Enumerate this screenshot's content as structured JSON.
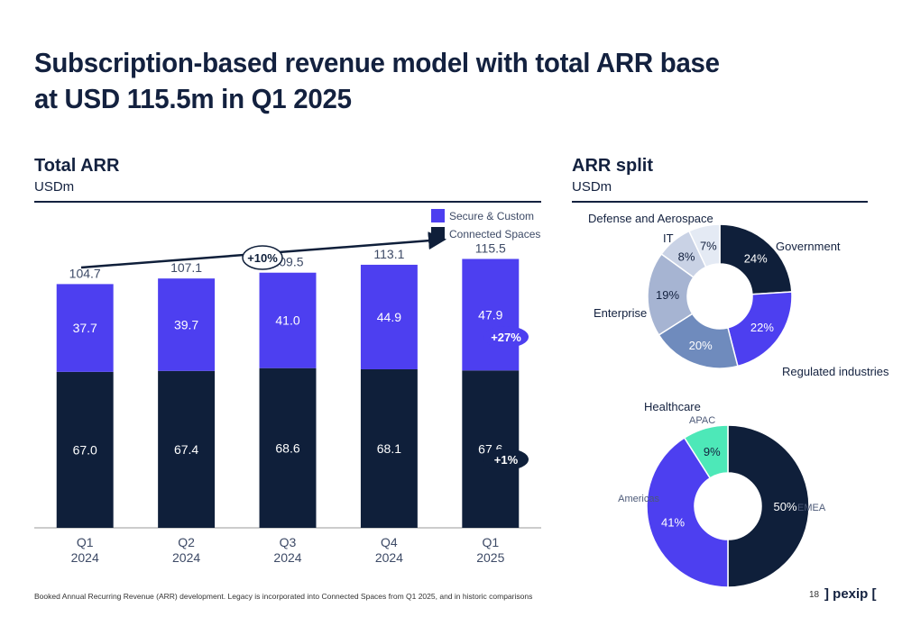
{
  "page": {
    "title_line1": "Subscription-based revenue model with total ARR base",
    "title_line2": "at USD 115.5m in Q1 2025",
    "footnote": "Booked Annual Recurring Revenue (ARR) development. Legacy is incorporated into Connected Spaces from Q1 2025, and in historic comparisons",
    "page_number": "18",
    "logo": "] pexip ["
  },
  "left": {
    "title": "Total ARR",
    "unit": "USDm"
  },
  "right": {
    "title": "ARR split",
    "unit": "USDm"
  },
  "colors": {
    "navy": "#0f1f3a",
    "purple": "#4d3ff0",
    "steel": "#6f8bbd",
    "lightsteel": "#a6b4d2",
    "pale": "#c9d2e5",
    "paler": "#e4eaf4",
    "mint": "#4de8b8"
  },
  "chart_data": [
    {
      "type": "bar",
      "stacked": true,
      "categories": [
        "Q1\n2024",
        "Q2\n2024",
        "Q3\n2024",
        "Q4\n2024",
        "Q1\n2025"
      ],
      "series": [
        {
          "name": "Connected Spaces",
          "values": [
            67.0,
            67.4,
            68.6,
            68.1,
            67.6
          ],
          "color": "#0f1f3a"
        },
        {
          "name": "Secure & Custom",
          "values": [
            37.7,
            39.7,
            41.0,
            44.9,
            47.9
          ],
          "color": "#4d3ff0"
        }
      ],
      "totals": [
        104.7,
        107.1,
        109.5,
        113.1,
        115.5
      ],
      "value_labels": {
        "Connected Spaces": [
          "67.0",
          "67.4",
          "68.6",
          "68.1",
          "67.6"
        ],
        "Secure & Custom": [
          "37.7",
          "39.7",
          "41.0",
          "44.9",
          "47.9"
        ],
        "totals": [
          "104.7",
          "107.1",
          "109.5",
          "113.1",
          "115.5"
        ]
      },
      "annotations": {
        "total_growth": "+10%",
        "secure_growth": "+27%",
        "connected_growth": "+1%"
      },
      "legend_position": "top-right",
      "ylim": [
        0,
        130
      ]
    },
    {
      "type": "pie",
      "donut": true,
      "labels": [
        "Government",
        "Regulated industries",
        "Healthcare",
        "Enterprise",
        "IT",
        "Defense and Aerospace"
      ],
      "values": [
        24,
        22,
        20,
        19,
        8,
        7
      ],
      "value_labels": [
        "24%",
        "22%",
        "20%",
        "19%",
        "8%",
        "7%"
      ],
      "colors": [
        "#0f1f3a",
        "#4d3ff0",
        "#6f8bbd",
        "#a6b4d2",
        "#c9d2e5",
        "#e4eaf4"
      ]
    },
    {
      "type": "pie",
      "donut": true,
      "labels": [
        "EMEA",
        "Americas",
        "APAC"
      ],
      "values": [
        50,
        41,
        9
      ],
      "value_labels": [
        "50%",
        "41%",
        "9%"
      ],
      "colors": [
        "#0f1f3a",
        "#4d3ff0",
        "#4de8b8"
      ]
    }
  ]
}
